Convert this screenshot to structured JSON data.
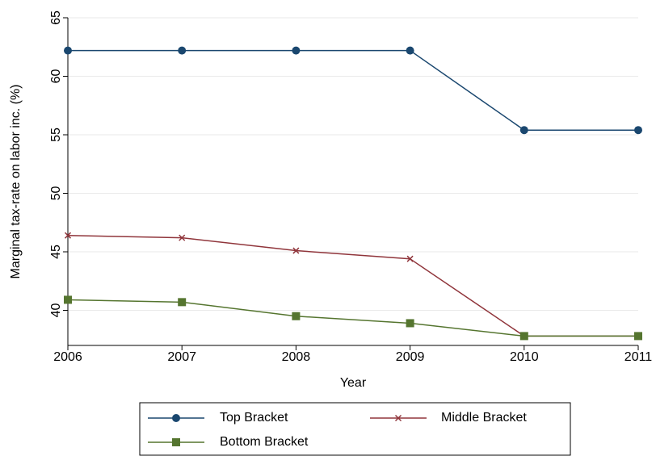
{
  "chart_data": {
    "type": "line",
    "x_label": "Year",
    "y_label": "Marginal tax-rate on labor inc. (%)",
    "x": [
      2006,
      2007,
      2008,
      2009,
      2010,
      2011
    ],
    "series": [
      {
        "name": "Top Bracket",
        "color": "#1a476f",
        "marker": "circle",
        "values": [
          62.2,
          62.2,
          62.2,
          62.2,
          55.4,
          55.4
        ]
      },
      {
        "name": "Middle Bracket",
        "color": "#90353b",
        "marker": "x",
        "values": [
          46.4,
          46.2,
          45.1,
          44.4,
          37.8,
          37.8
        ]
      },
      {
        "name": "Bottom Bracket",
        "color": "#55752f",
        "marker": "square",
        "values": [
          40.9,
          40.7,
          39.5,
          38.9,
          37.8,
          37.8
        ]
      }
    ],
    "xlim": [
      2006,
      2011
    ],
    "xticks": [
      2006,
      2007,
      2008,
      2009,
      2010,
      2011
    ],
    "ylim": [
      37,
      65
    ],
    "yticks": [
      40,
      45,
      50,
      55,
      60,
      65
    ],
    "grid": true
  }
}
